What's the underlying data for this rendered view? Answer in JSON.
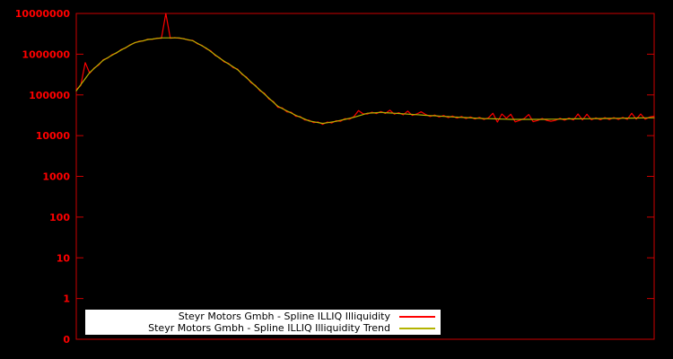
{
  "chart_data": {
    "type": "line",
    "title": "",
    "background_color": "#000000",
    "frame_color": "#cc0000",
    "tick_label_color": "#ff0000",
    "y_scale": "log",
    "y_ticks": [
      "10000000",
      "1000000",
      "100000",
      "10000",
      "1000",
      "100",
      "10",
      "1",
      "0"
    ],
    "x_axis": {
      "tick_labels_visible": false
    },
    "legend_position": "bottom-center",
    "series": [
      {
        "name": "Steyr Motors Gmbh - Spline ILLIQ Illiquidity",
        "color": "#ff0000",
        "values": [
          135000,
          170000,
          620000,
          340000,
          460000,
          540000,
          730000,
          800000,
          980000,
          1060000,
          1300000,
          1420000,
          1700000,
          1880000,
          2080000,
          2120000,
          2340000,
          2320000,
          2480000,
          2460000,
          10000000,
          2470000,
          2560000,
          2450000,
          2420000,
          2210000,
          2180000,
          1810000,
          1660000,
          1360000,
          1210000,
          930000,
          820000,
          650000,
          595000,
          470000,
          432000,
          318000,
          274000,
          199000,
          172000,
          126000,
          110000,
          79000,
          69000,
          49500,
          48000,
          38500,
          37500,
          29800,
          29500,
          24200,
          23800,
          20800,
          21700,
          18900,
          21500,
          20400,
          23300,
          22500,
          26100,
          25300,
          29500,
          41000,
          34500,
          33800,
          37500,
          34800,
          39000,
          35000,
          42000,
          33700,
          36500,
          32500,
          40000,
          31400,
          34000,
          38500,
          33000,
          29500,
          32000,
          28700,
          31200,
          27800,
          30200,
          27000,
          29500,
          26300,
          28800,
          25600,
          28000,
          24900,
          27400,
          35500,
          21500,
          34000,
          26600,
          33500,
          21800,
          23700,
          26300,
          33000,
          22000,
          23600,
          26300,
          23700,
          22500,
          23800,
          26700,
          24000,
          26900,
          24200,
          34000,
          24300,
          33500,
          24400,
          27400,
          24600,
          27600,
          24800,
          27800,
          24900,
          28000,
          25100,
          35500,
          25300,
          34000,
          25400,
          28600,
          30000
        ]
      },
      {
        "name": "Steyr Motors Gmbh - Spline ILLIQ Illiquidity Trend",
        "color": "#b3b300",
        "values": [
          126000,
          178000,
          251000,
          355000,
          447000,
          562000,
          708000,
          817000,
          944000,
          1090000,
          1260000,
          1450000,
          1660000,
          1910000,
          2030000,
          2150000,
          2290000,
          2360000,
          2440000,
          2510000,
          2510000,
          2510000,
          2510000,
          2510000,
          2380000,
          2260000,
          2140000,
          1860000,
          1620000,
          1410000,
          1170000,
          963000,
          794000,
          676000,
          575000,
          490000,
          417000,
          331000,
          263000,
          209000,
          166000,
          132000,
          105000,
          83200,
          66100,
          52500,
          46200,
          40700,
          35900,
          31600,
          28400,
          25500,
          22900,
          21900,
          20900,
          20000,
          20700,
          21500,
          22400,
          23700,
          25100,
          26600,
          28200,
          30400,
          32900,
          35500,
          36000,
          36600,
          37200,
          36600,
          36000,
          35500,
          34900,
          34300,
          33700,
          33100,
          32600,
          32100,
          31600,
          31100,
          30700,
          30200,
          29700,
          29300,
          28800,
          28500,
          28100,
          27700,
          27400,
          27000,
          26600,
          26300,
          26100,
          25900,
          25700,
          25500,
          25300,
          25100,
          25100,
          25100,
          25100,
          25100,
          25100,
          25100,
          25100,
          25200,
          25300,
          25400,
          25500,
          25600,
          25700,
          25800,
          25900,
          26000,
          26000,
          26100,
          26200,
          26300,
          26400,
          26500,
          26600,
          26700,
          26800,
          26900,
          27000,
          27100,
          27200,
          27300,
          27400,
          27500
        ]
      }
    ]
  },
  "legend": {
    "items": [
      {
        "label": "Steyr Motors Gmbh - Spline ILLIQ Illiquidity",
        "color": "#ff0000"
      },
      {
        "label": "Steyr Motors Gmbh - Spline ILLIQ Illiquidity Trend",
        "color": "#b3b300"
      }
    ]
  }
}
